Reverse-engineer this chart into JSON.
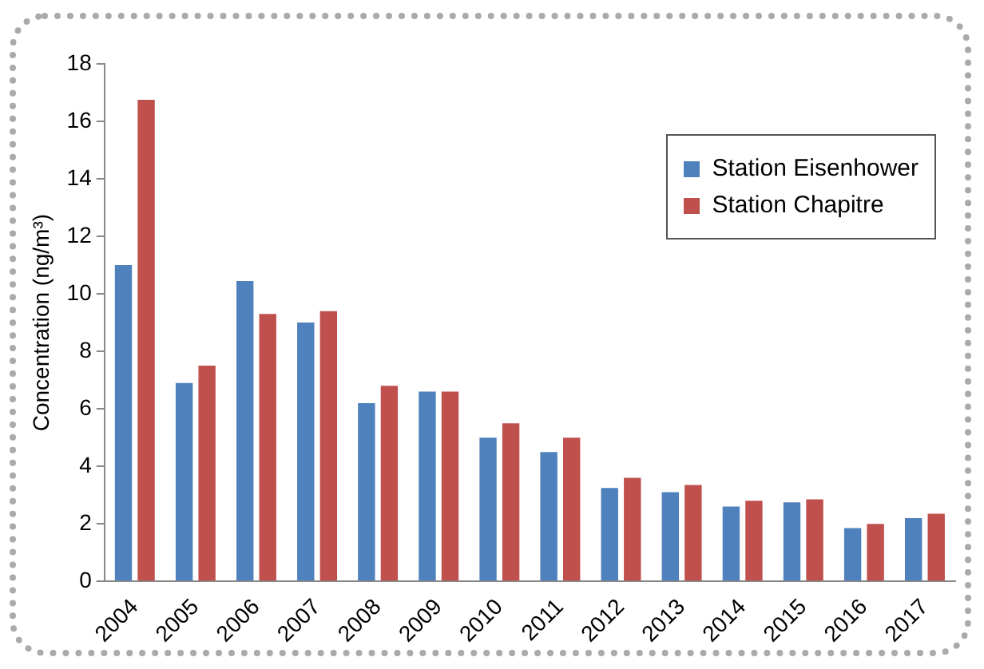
{
  "chart_data": {
    "type": "bar",
    "ylabel": "Concentration (ng/m³)",
    "categories": [
      "2004",
      "2005",
      "2006",
      "2007",
      "2008",
      "2009",
      "2010",
      "2011",
      "2012",
      "2013",
      "2014",
      "2015",
      "2016",
      "2017"
    ],
    "series": [
      {
        "name": "Station Eisenhower",
        "color": "#4f81bd",
        "values": [
          11.0,
          6.9,
          10.45,
          9.0,
          6.2,
          6.6,
          5.0,
          4.5,
          3.25,
          3.1,
          2.6,
          2.75,
          1.85,
          2.2
        ]
      },
      {
        "name": "Station Chapitre",
        "color": "#c0504d",
        "values": [
          16.75,
          7.5,
          9.3,
          9.4,
          6.8,
          6.6,
          5.5,
          5.0,
          3.6,
          3.35,
          2.8,
          2.85,
          2.0,
          2.35
        ]
      }
    ],
    "ylim": [
      0,
      18
    ],
    "yticks": [
      0,
      2,
      4,
      6,
      8,
      10,
      12,
      14,
      16,
      18
    ],
    "grid": false,
    "legend": "top right"
  }
}
